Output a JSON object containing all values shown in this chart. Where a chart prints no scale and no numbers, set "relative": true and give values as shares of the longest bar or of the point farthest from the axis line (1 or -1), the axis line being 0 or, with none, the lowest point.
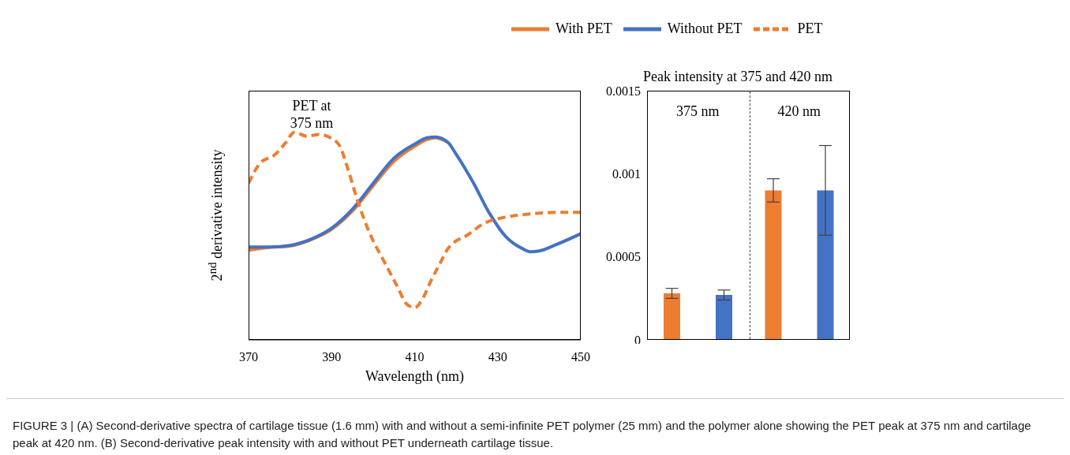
{
  "chart_data": [
    {
      "type": "line",
      "relative": true,
      "xlabel": "Wavelength (nm)",
      "ylabel": "2$^{nd}$ derivative intensity",
      "xlim": [
        370,
        450
      ],
      "xticks": [
        370,
        390,
        410,
        430,
        450
      ],
      "legend": "top",
      "annotations": [
        "PET at 375 nm",
        "FIGURE 3 | (A) Second-derivative spectra of cartilage tissue (1.6 mm) with and without a semi-infinite PET polymer (25 mm) and the polymer alone showing the PET peak at 375 nm and cartilage peak at 420 nm. (B) Second-derivative peak intensity with and without PET underneath cartilage tissue."
      ],
      "series": [
        {
          "name": "With PET",
          "color": "#ed7d31",
          "line_style": "solid",
          "x": [
            370,
            375,
            380,
            385,
            390,
            395,
            400,
            405,
            410,
            413,
            415,
            418
          ],
          "values": [
            0.432,
            0.445,
            0.452,
            0.482,
            0.532,
            0.62,
            0.742,
            0.86,
            0.932,
            0.965,
            0.973,
            0.951
          ]
        },
        {
          "name": "Without PET",
          "color": "#4472c4",
          "line_style": "solid",
          "x": [
            370,
            375,
            380,
            385,
            390,
            395,
            400,
            405,
            410,
            413,
            415,
            418,
            420,
            424,
            428,
            432,
            436,
            438,
            440,
            444,
            450
          ],
          "values": [
            0.447,
            0.447,
            0.455,
            0.485,
            0.538,
            0.629,
            0.754,
            0.875,
            0.943,
            0.973,
            0.977,
            0.951,
            0.894,
            0.761,
            0.61,
            0.496,
            0.439,
            0.424,
            0.428,
            0.458,
            0.511
          ]
        },
        {
          "name": "PET",
          "color": "#ed7d31",
          "line_style": "dashed",
          "x": [
            370,
            373,
            376,
            379,
            381,
            384,
            387,
            390,
            392,
            394,
            396,
            398,
            400,
            402,
            404,
            406,
            408,
            410,
            412,
            414,
            416,
            418,
            420,
            422,
            424,
            426,
            428,
            430,
            434,
            440,
            445,
            450
          ],
          "values": [
            0.754,
            0.856,
            0.886,
            0.951,
            1,
            0.981,
            0.989,
            0.97,
            0.932,
            0.818,
            0.686,
            0.572,
            0.477,
            0.402,
            0.326,
            0.25,
            0.174,
            0.155,
            0.201,
            0.288,
            0.364,
            0.439,
            0.477,
            0.496,
            0.523,
            0.553,
            0.572,
            0.583,
            0.598,
            0.61,
            0.614,
            0.614
          ]
        }
      ]
    },
    {
      "type": "bar",
      "title": "Peak intensity at 375 and 420 nm",
      "categories": [
        "375 nm",
        "420 nm"
      ],
      "ylim": [
        0,
        0.0015
      ],
      "yticks": [
        0,
        0.0005,
        0.001,
        0.0015
      ],
      "ref_lines": [
        {
          "axis": "x",
          "line_style": "dashed",
          "color": "#404040"
        }
      ],
      "series": [
        {
          "color": "#ed7d31",
          "values": [
            0.00028,
            0.0009
          ],
          "errors": [
            3e-05,
            7e-05
          ]
        },
        {
          "color": "#4472c4",
          "values": [
            0.00027,
            0.0009
          ],
          "errors": [
            3e-05,
            0.00027
          ]
        }
      ]
    }
  ]
}
